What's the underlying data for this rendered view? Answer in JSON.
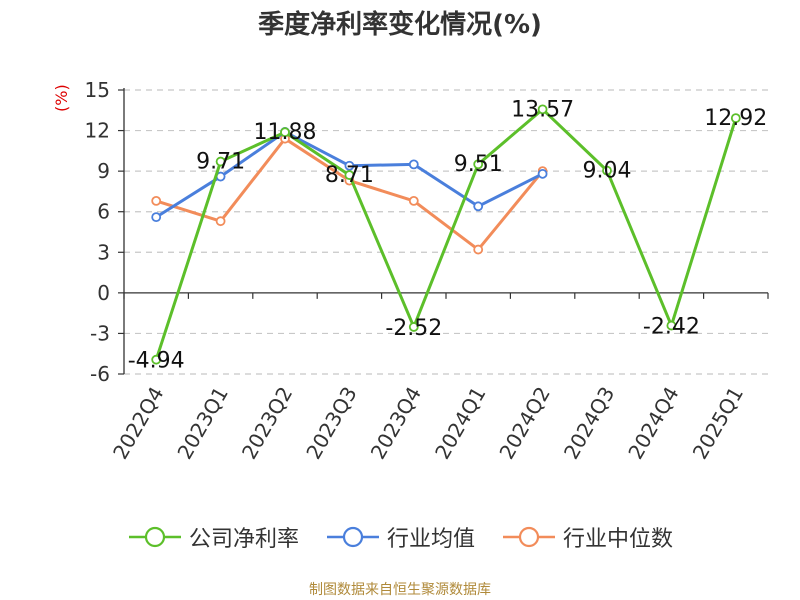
{
  "chart_data": {
    "type": "line",
    "title": "季度净利率变化情况(%)",
    "ylabel": "(%)",
    "categories": [
      "2022Q4",
      "2023Q1",
      "2023Q2",
      "2023Q3",
      "2023Q4",
      "2024Q1",
      "2024Q2",
      "2024Q3",
      "2024Q4",
      "2025Q1"
    ],
    "yticks": [
      -6,
      -3,
      0,
      3,
      6,
      9,
      12,
      15
    ],
    "ylim": [
      -6,
      15
    ],
    "grid": true,
    "legend_position": "bottom",
    "series": [
      {
        "name": "公司净利率",
        "color": "#5cbf2a",
        "values": [
          -4.94,
          9.71,
          11.88,
          8.71,
          -2.52,
          9.51,
          13.57,
          9.04,
          -2.42,
          12.92
        ],
        "labels": [
          "-4.94",
          "9.71",
          "11.88",
          "8.71",
          "-2.52",
          "9.51",
          "13.57",
          "9.04",
          "-2.42",
          "12.92"
        ]
      },
      {
        "name": "行业均值",
        "color": "#4a7fdc",
        "values": [
          5.6,
          8.6,
          11.9,
          9.4,
          9.5,
          6.4,
          8.8,
          null,
          null,
          null
        ]
      },
      {
        "name": "行业中位数",
        "color": "#f28c5a",
        "values": [
          6.8,
          5.3,
          11.4,
          8.3,
          6.8,
          3.2,
          9.0,
          null,
          null,
          null
        ]
      }
    ]
  },
  "source": "制图数据来自恒生聚源数据库"
}
